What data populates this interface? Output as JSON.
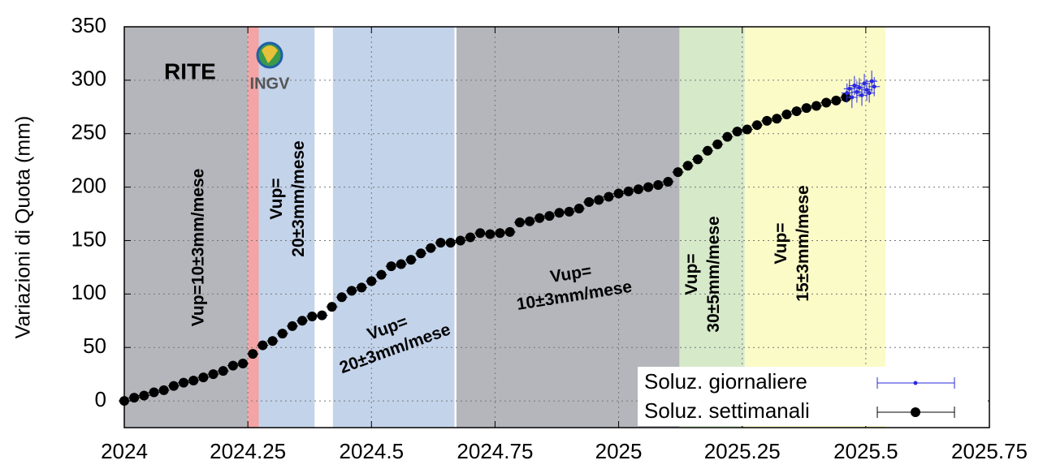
{
  "chart_data": {
    "type": "scatter",
    "ylabel": "Variazioni di Quota (mm)",
    "station": "RITE",
    "logo_text": "INGV",
    "xlim": [
      2024,
      2025.75
    ],
    "xticks": [
      2024,
      2024.25,
      2024.5,
      2024.75,
      2025,
      2025.25,
      2025.5,
      2025.75
    ],
    "ylim": [
      -25,
      350
    ],
    "yticks": [
      0,
      50,
      100,
      150,
      200,
      250,
      300,
      350
    ],
    "grid": true,
    "legend": "lower right",
    "regions": [
      {
        "x0": 2024,
        "x1": 2024.25,
        "color": "#b5b6bc"
      },
      {
        "x0": 2024.25,
        "x1": 2024.272,
        "color": "#f4a4a4"
      },
      {
        "x0": 2024.272,
        "x1": 2024.385,
        "color": "#c3d3ea"
      },
      {
        "x0": 2024.422,
        "x1": 2024.668,
        "color": "#c3d3ea"
      },
      {
        "x0": 2024.672,
        "x1": 2025.123,
        "color": "#b5b6bc"
      },
      {
        "x0": 2025.123,
        "x1": 2025.255,
        "color": "#d6e9c9"
      },
      {
        "x0": 2025.255,
        "x1": 2025.54,
        "color": "#fbfbc8"
      }
    ],
    "annotations": [
      {
        "lines": [
          "Vup=10±3mm/mese"
        ]
      },
      {
        "lines": [
          "Vup=",
          "20±3mm/mese"
        ]
      },
      {
        "lines": [
          "Vup=",
          "20±3mm/mese"
        ]
      },
      {
        "lines": [
          "Vup=",
          "10±3mm/mese"
        ]
      },
      {
        "lines": [
          "Vup=",
          "30±5mm/mese"
        ]
      },
      {
        "lines": [
          "Vup=",
          "15±3mm/mese"
        ]
      }
    ],
    "series": [
      {
        "name": "Soluz. giornaliere",
        "color": "#2a2ae0",
        "x": [
          2025.462,
          2025.467,
          2025.472,
          2025.477,
          2025.482,
          2025.487,
          2025.492,
          2025.497,
          2025.502,
          2025.507,
          2025.512,
          2025.517
        ],
        "values": [
          288,
          292,
          284,
          295,
          289,
          293,
          286,
          297,
          291,
          288,
          299,
          294
        ],
        "errors": [
          9,
          9,
          10,
          9,
          10,
          9,
          10,
          9,
          10,
          9,
          10,
          9
        ]
      },
      {
        "name": "Soluz. settimanali",
        "color": "#000000",
        "x": [
          2024.0,
          2024.02,
          2024.04,
          2024.06,
          2024.08,
          2024.1,
          2024.12,
          2024.14,
          2024.16,
          2024.18,
          2024.2,
          2024.22,
          2024.24,
          2024.26,
          2024.28,
          2024.3,
          2024.32,
          2024.34,
          2024.36,
          2024.38,
          2024.4,
          2024.42,
          2024.44,
          2024.46,
          2024.48,
          2024.5,
          2024.52,
          2024.54,
          2024.56,
          2024.58,
          2024.6,
          2024.62,
          2024.64,
          2024.66,
          2024.68,
          2024.7,
          2024.72,
          2024.74,
          2024.76,
          2024.78,
          2024.8,
          2024.82,
          2024.84,
          2024.86,
          2024.88,
          2024.9,
          2024.92,
          2024.94,
          2024.96,
          2024.98,
          2025.0,
          2025.02,
          2025.04,
          2025.06,
          2025.08,
          2025.1,
          2025.12,
          2025.14,
          2025.16,
          2025.18,
          2025.2,
          2025.22,
          2025.24,
          2025.26,
          2025.28,
          2025.3,
          2025.32,
          2025.34,
          2025.36,
          2025.38,
          2025.4,
          2025.42,
          2025.44,
          2025.46
        ],
        "values": [
          0,
          3,
          5,
          8,
          10,
          14,
          17,
          19,
          22,
          25,
          28,
          33,
          35,
          44,
          52,
          56,
          63,
          70,
          75,
          79,
          80,
          88,
          97,
          103,
          106,
          112,
          118,
          126,
          128,
          132,
          138,
          143,
          148,
          148,
          150,
          153,
          157,
          156,
          157,
          158,
          167,
          168,
          171,
          173,
          176,
          177,
          180,
          186,
          188,
          191,
          194,
          196,
          198,
          200,
          202,
          205,
          214,
          220,
          226,
          234,
          240,
          247,
          252,
          254,
          258,
          262,
          264,
          268,
          271,
          274,
          276,
          279,
          281,
          284
        ],
        "errors": [
          3,
          3,
          3,
          3,
          3,
          3,
          3,
          3,
          3,
          3,
          3,
          3,
          3,
          3,
          3,
          3,
          3,
          3,
          3,
          3,
          3,
          3,
          3,
          3,
          3,
          3,
          3,
          3,
          3,
          3,
          3,
          3,
          3,
          3,
          3,
          3,
          3,
          3,
          3,
          3,
          3,
          3,
          3,
          3,
          3,
          3,
          3,
          3,
          3,
          3,
          3,
          3,
          3,
          3,
          3,
          3,
          3,
          3,
          3,
          3,
          3,
          3,
          3,
          3,
          3,
          3,
          3,
          3,
          3,
          3,
          3,
          3,
          3,
          3
        ]
      }
    ]
  }
}
